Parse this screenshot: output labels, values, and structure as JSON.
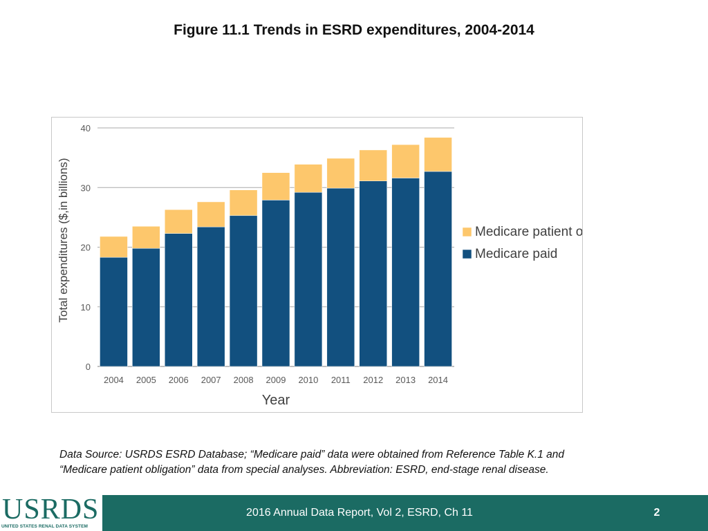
{
  "slide": {
    "title": "Figure 11.1 Trends in ESRD expenditures, 2004-2014",
    "source_note_line1": "Data Source: USRDS ESRD Database; “Medicare paid” data were obtained from Reference Table K.1 and",
    "source_note_line2": "“Medicare patient obligation” data from special analyses. Abbreviation: ESRD, end-stage renal disease.",
    "footer_text": "2016 Annual Data Report, Vol 2, ESRD, Ch 11",
    "page_number": "2",
    "logo_text": "USRDS",
    "logo_subtext": "UNITED STATES RENAL DATA SYSTEM"
  },
  "colors": {
    "medicare_paid": "#12507f",
    "patient_obligation": "#fdc76c",
    "footer": "#1b6b63",
    "gridline": "#a9a9a9",
    "text": "#595959"
  },
  "chart_data": {
    "type": "bar",
    "stacked": true,
    "title": "",
    "xlabel": "Year",
    "ylabel": "Total expenditures ($,in billions)",
    "ylim": [
      0,
      40
    ],
    "yticks": [
      0,
      10,
      20,
      30,
      40
    ],
    "grid": true,
    "legend_position": "right",
    "categories": [
      "2004",
      "2005",
      "2006",
      "2007",
      "2008",
      "2009",
      "2010",
      "2011",
      "2012",
      "2013",
      "2014"
    ],
    "series": [
      {
        "name": "Medicare paid",
        "values": [
          18.3,
          19.8,
          22.3,
          23.4,
          25.3,
          27.9,
          29.2,
          29.9,
          31.1,
          31.6,
          32.7
        ]
      },
      {
        "name": "Medicare patient obligation",
        "values": [
          3.5,
          3.7,
          4.0,
          4.2,
          4.3,
          4.6,
          4.7,
          5.0,
          5.2,
          5.6,
          5.7
        ]
      }
    ],
    "legend_order": [
      "Medicare patient obligation",
      "Medicare paid"
    ]
  }
}
